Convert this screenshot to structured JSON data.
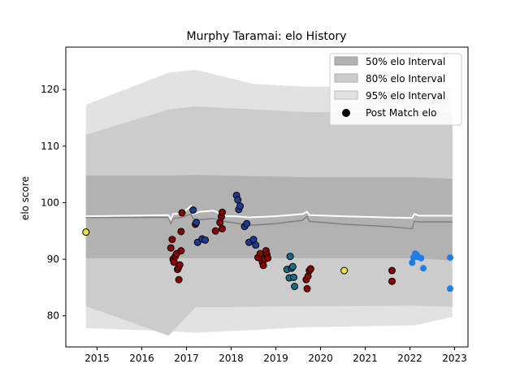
{
  "chart_data": {
    "type": "scatter",
    "title": "Murphy Taramai: elo History",
    "xlabel": "",
    "ylabel": "elo score",
    "xlim": [
      2014.3,
      2023.3
    ],
    "ylim": [
      74.5,
      127.5
    ],
    "xticks": [
      2015,
      2016,
      2017,
      2018,
      2019,
      2020,
      2021,
      2022,
      2023
    ],
    "yticks": [
      80,
      90,
      100,
      110,
      120
    ],
    "legend": {
      "position": "top-right",
      "entries": [
        "50% elo Interval",
        "80% elo Interval",
        "95% elo Interval",
        "Post Match elo"
      ]
    },
    "colors": {
      "band50": "#b2b2b2",
      "band80": "#cccccc",
      "band95": "#e2e2e2",
      "median_line": "#808080",
      "current_line": "#ffffff",
      "pt_early": "#f0e442",
      "pt_red": "#8b0000",
      "pt_navy": "#1f3a93",
      "pt_teal": "#1a6a8a",
      "pt_blue": "#1e7de6"
    },
    "bands": [
      {
        "x": 2014.75,
        "p95_hi": 117.3,
        "p80_hi": 112.0,
        "p50_hi": 104.8,
        "p50_lo": 90.2,
        "p80_lo": 81.7,
        "p95_lo": 77.8
      },
      {
        "x": 2016.6,
        "p95_hi": 123.0,
        "p80_hi": 116.5,
        "p80_lo": 76.5,
        "p50_hi": 104.8,
        "p50_lo": 90.2,
        "p95_lo": 77.3
      },
      {
        "x": 2017.2,
        "p95_hi": 123.5,
        "p80_hi": 117.0,
        "p50_hi": 104.9,
        "p50_lo": 90.2,
        "p80_lo": 81.5,
        "p95_lo": 77.0
      },
      {
        "x": 2018.5,
        "p95_hi": 121.0,
        "p80_hi": 116.5,
        "p50_hi": 104.7,
        "p50_lo": 90.2,
        "p80_lo": 81.6,
        "p95_lo": 77.5
      },
      {
        "x": 2019.7,
        "p95_hi": 120.5,
        "p80_hi": 116.0,
        "p50_hi": 104.5,
        "p50_lo": 90.2,
        "p80_lo": 81.7,
        "p95_lo": 78.0
      },
      {
        "x": 2022.1,
        "p95_hi": 120.5,
        "p80_hi": 116.0,
        "p50_hi": 104.5,
        "p50_lo": 90.2,
        "p80_lo": 81.8,
        "p95_lo": 78.3
      },
      {
        "x": 2022.95,
        "p95_hi": 120.5,
        "p80_hi": 116.0,
        "p50_hi": 104.2,
        "p50_lo": 89.8,
        "p80_lo": 81.6,
        "p95_lo": 79.8
      }
    ],
    "median_line": {
      "x": [
        2014.75,
        2016.6,
        2016.65,
        2016.7,
        2016.9,
        2017.1,
        2017.15,
        2017.3,
        2017.6,
        2017.9,
        2018.1,
        2018.4,
        2019.0,
        2019.6,
        2019.7,
        2019.75,
        2020.5,
        2021.5,
        2022.05,
        2022.1,
        2022.2,
        2022.95
      ],
      "y": [
        97.4,
        97.4,
        96.3,
        97.2,
        97.4,
        98.0,
        97.2,
        97.0,
        97.2,
        96.6,
        96.4,
        96.0,
        96.3,
        96.9,
        97.6,
        96.7,
        96.2,
        95.8,
        95.4,
        96.7,
        96.6,
        96.6
      ]
    },
    "current_line": {
      "x": [
        2014.75,
        2016.6,
        2016.65,
        2016.7,
        2016.9,
        2017.1,
        2017.15,
        2017.3,
        2017.6,
        2017.9,
        2018.1,
        2018.4,
        2019.0,
        2019.6,
        2019.7,
        2019.75,
        2020.5,
        2021.5,
        2022.05,
        2022.1,
        2022.2,
        2022.95
      ],
      "y": [
        97.6,
        97.8,
        97.0,
        98.0,
        98.1,
        99.4,
        98.0,
        98.4,
        98.6,
        97.6,
        97.6,
        97.4,
        97.6,
        98.0,
        98.4,
        97.8,
        97.6,
        97.4,
        97.3,
        98.0,
        97.7,
        97.7
      ]
    },
    "series": [
      {
        "values": [
          [
            2014.75,
            94.8
          ],
          [
            2020.53,
            88.0
          ]
        ],
        "color_key": "pt_early"
      },
      {
        "values": [
          [
            2016.65,
            92.0
          ],
          [
            2016.68,
            93.5
          ],
          [
            2016.7,
            90.0
          ],
          [
            2016.72,
            89.5
          ],
          [
            2016.75,
            90.5
          ],
          [
            2016.78,
            91.0
          ],
          [
            2016.8,
            88.2
          ],
          [
            2016.82,
            88.5
          ],
          [
            2016.85,
            89.0
          ],
          [
            2016.83,
            86.4
          ],
          [
            2016.88,
            91.5
          ],
          [
            2016.88,
            94.9
          ],
          [
            2016.9,
            98.2
          ],
          [
            2017.2,
            96.2
          ],
          [
            2017.65,
            95.0
          ],
          [
            2017.75,
            96.5
          ],
          [
            2017.78,
            97.5
          ],
          [
            2017.8,
            98.3
          ],
          [
            2017.8,
            95.4
          ],
          [
            2018.6,
            90.3
          ],
          [
            2018.65,
            91.0
          ],
          [
            2018.7,
            89.5
          ],
          [
            2018.72,
            88.9
          ],
          [
            2018.75,
            90.0
          ],
          [
            2018.78,
            91.5
          ],
          [
            2018.8,
            90.8
          ],
          [
            2018.82,
            90.2
          ],
          [
            2019.68,
            86.4
          ],
          [
            2019.7,
            84.8
          ],
          [
            2019.72,
            87.0
          ],
          [
            2019.75,
            88.0
          ],
          [
            2019.78,
            88.3
          ],
          [
            2021.6,
            88.0
          ],
          [
            2021.6,
            86.1
          ]
        ],
        "color_key": "pt_red"
      },
      {
        "values": [
          [
            2017.15,
            98.7
          ],
          [
            2017.22,
            96.5
          ],
          [
            2017.25,
            93.0
          ],
          [
            2017.35,
            93.6
          ],
          [
            2017.42,
            93.4
          ],
          [
            2018.12,
            101.3
          ],
          [
            2018.15,
            100.5
          ],
          [
            2018.17,
            98.8
          ],
          [
            2018.2,
            99.4
          ],
          [
            2018.3,
            95.8
          ],
          [
            2018.35,
            96.3
          ],
          [
            2018.4,
            93.0
          ],
          [
            2018.5,
            93.5
          ],
          [
            2018.55,
            92.5
          ]
        ],
        "color_key": "pt_navy"
      },
      {
        "values": [
          [
            2019.25,
            88.2
          ],
          [
            2019.3,
            86.7
          ],
          [
            2019.32,
            90.5
          ],
          [
            2019.35,
            88.4
          ],
          [
            2019.38,
            88.7
          ],
          [
            2019.4,
            86.8
          ],
          [
            2019.42,
            85.2
          ]
        ],
        "color_key": "pt_teal"
      },
      {
        "values": [
          [
            2022.05,
            89.4
          ],
          [
            2022.08,
            90.3
          ],
          [
            2022.12,
            91.0
          ],
          [
            2022.15,
            90.8
          ],
          [
            2022.18,
            90.4
          ],
          [
            2022.25,
            90.2
          ],
          [
            2022.3,
            88.4
          ],
          [
            2022.9,
            90.3
          ],
          [
            2022.9,
            84.8
          ]
        ],
        "color_key": "pt_blue"
      }
    ]
  }
}
